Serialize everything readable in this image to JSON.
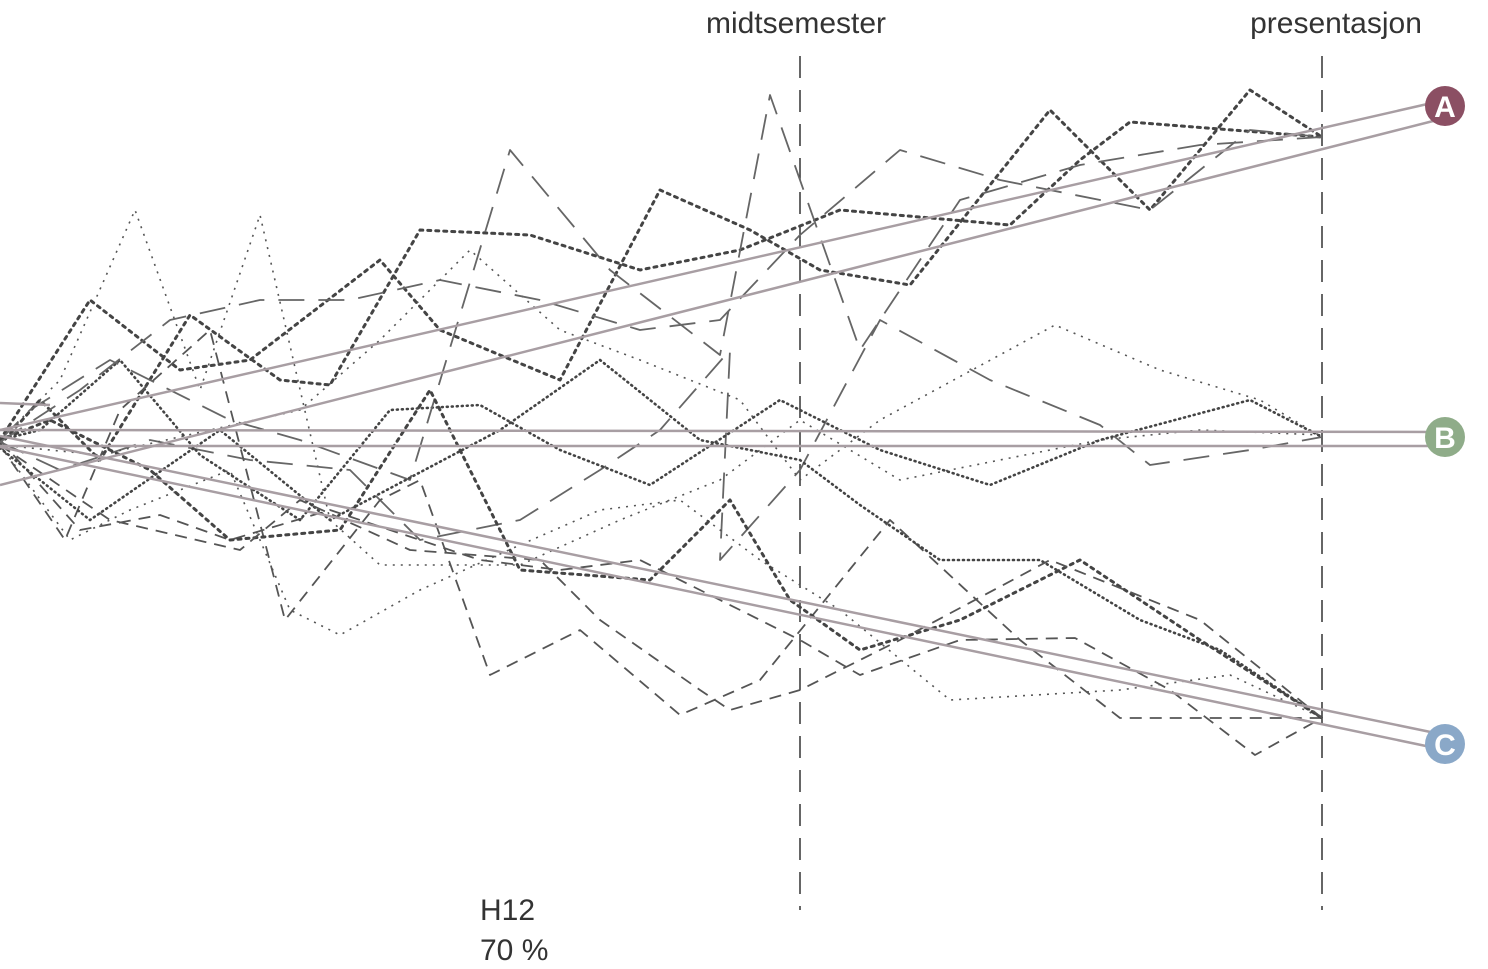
{
  "markers": {
    "midterm": "midtsemester",
    "presentation": "presentasjon"
  },
  "outcomes": [
    {
      "letter": "A",
      "color": "#8b4f63"
    },
    {
      "letter": "B",
      "color": "#8fac89"
    },
    {
      "letter": "C",
      "color": "#8aa8c8"
    }
  ],
  "footer": {
    "semester": "H12",
    "percent": "70 %"
  },
  "colors": {
    "guide": "#a89ea3",
    "trace": "#555555",
    "marker_line": "#333333"
  }
}
